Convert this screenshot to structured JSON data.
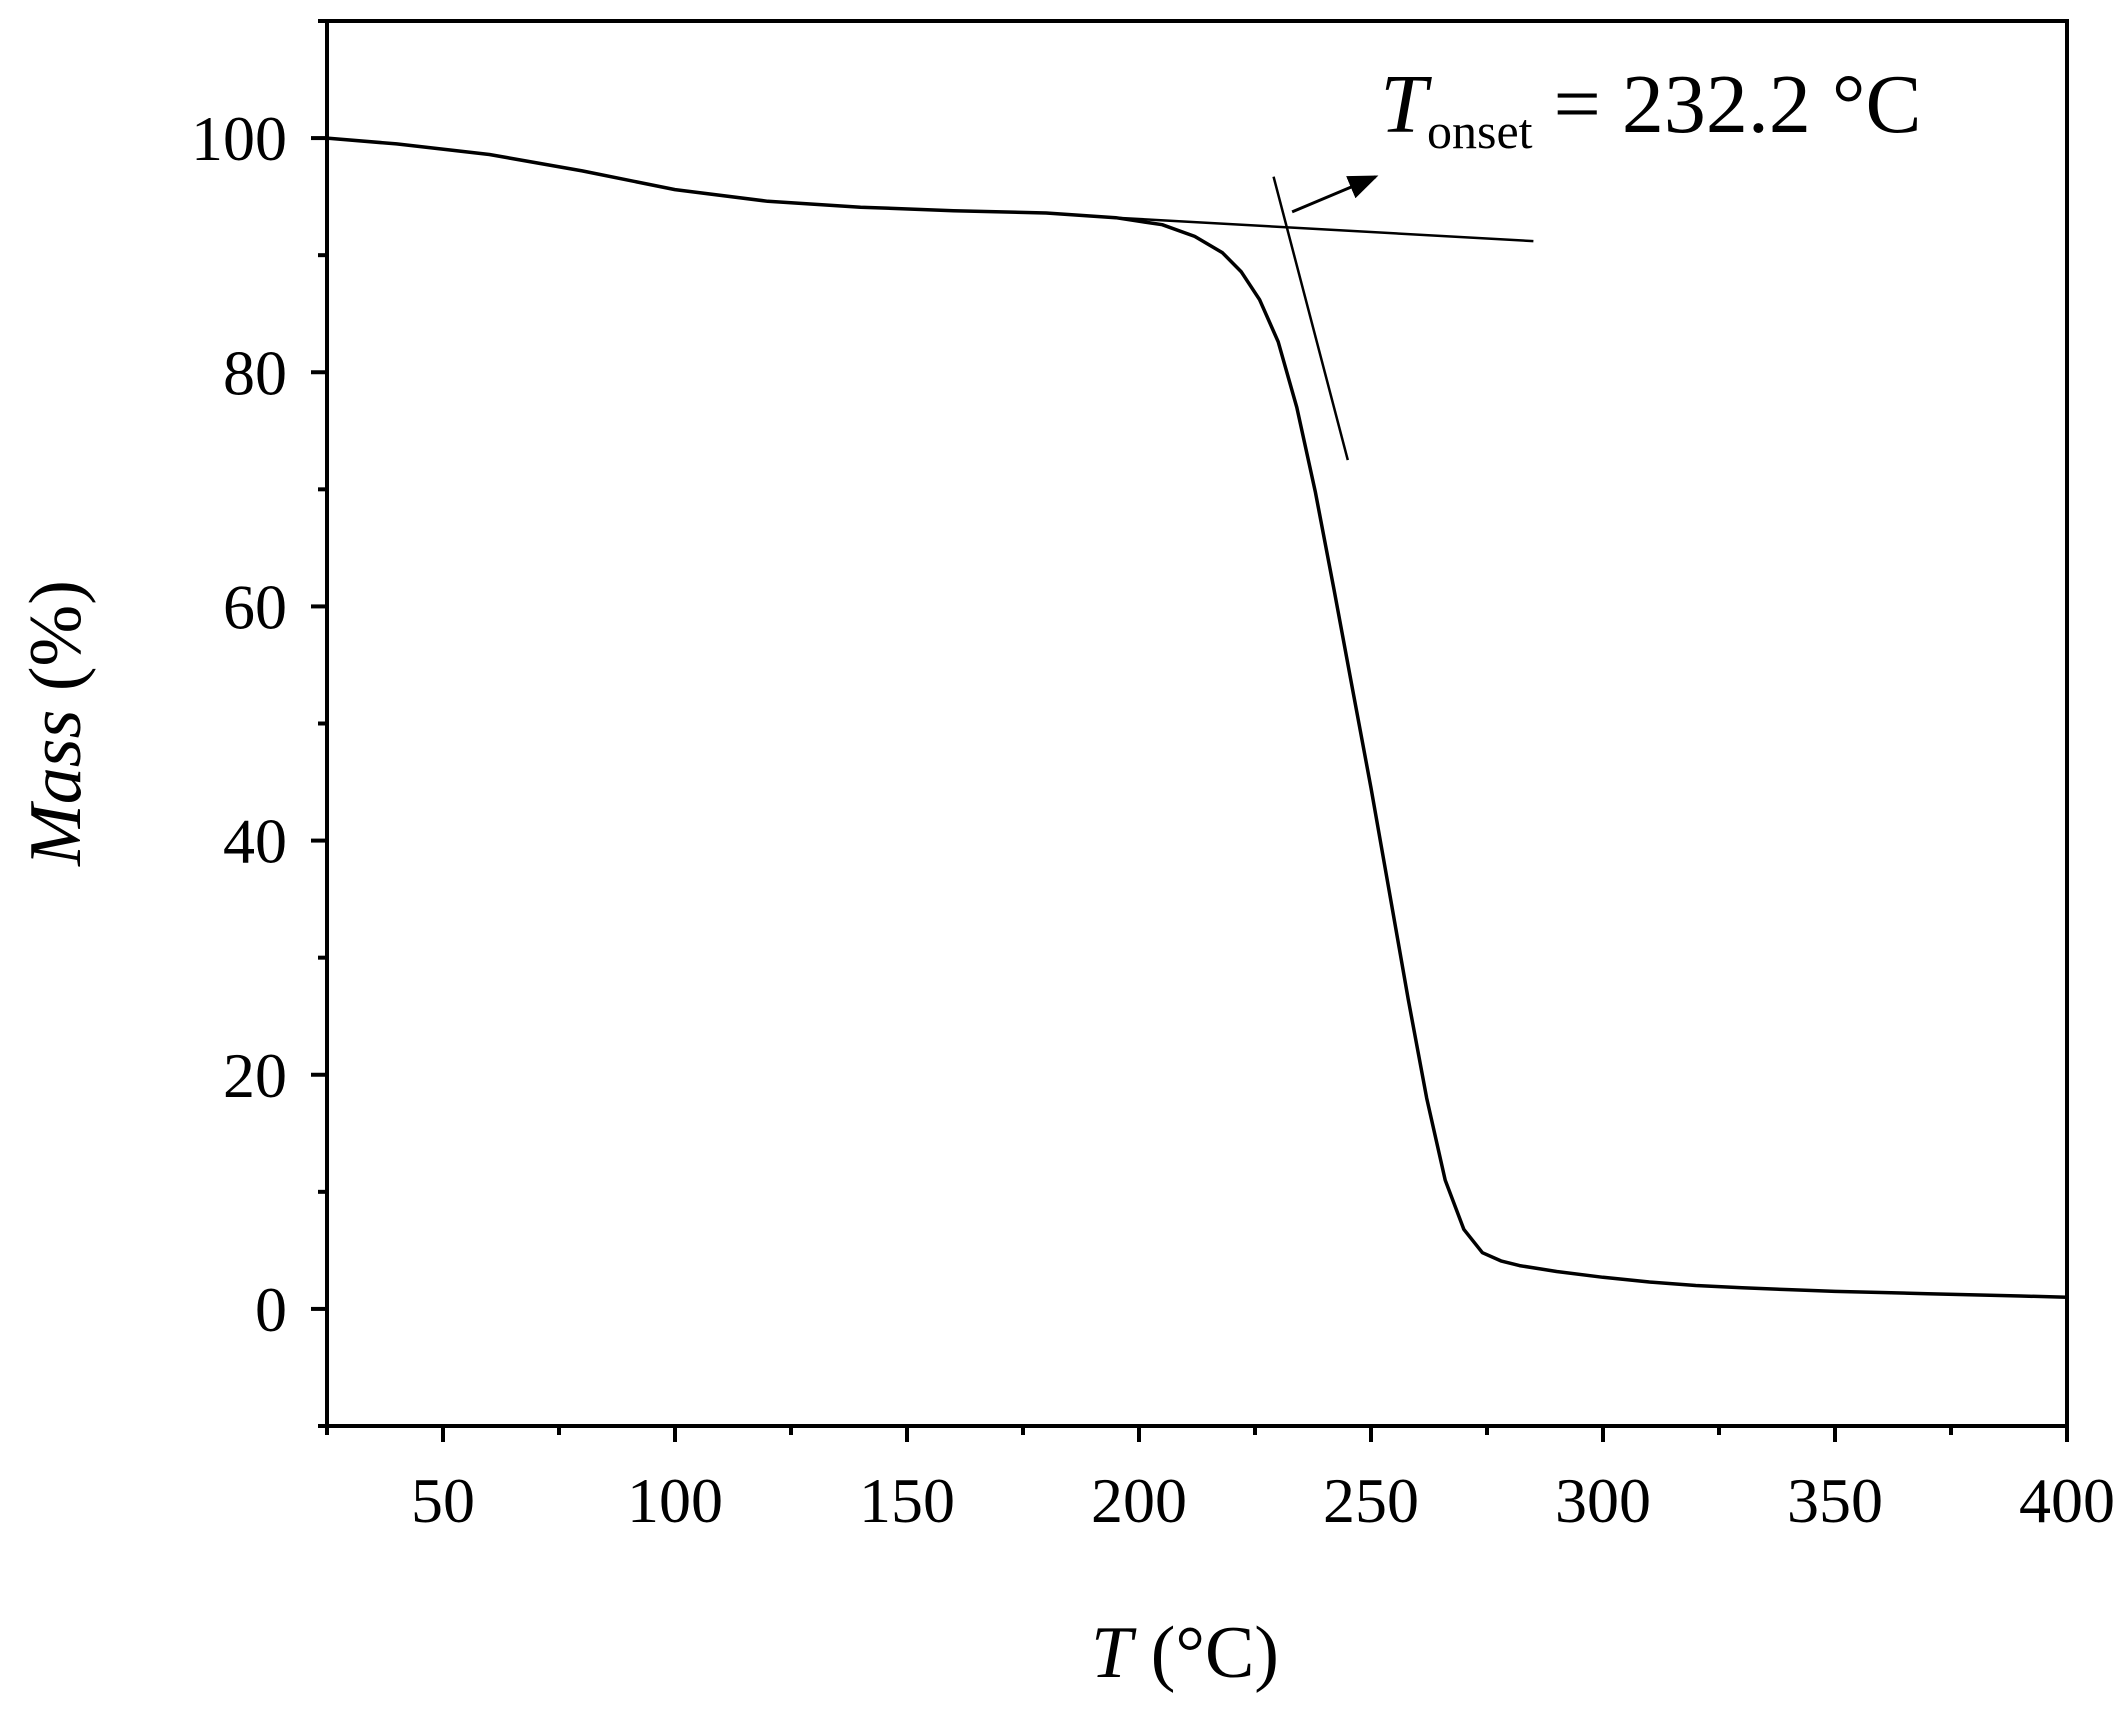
{
  "chart_data": {
    "type": "line",
    "xlabel": {
      "var": "T",
      "unit": " (°C)"
    },
    "ylabel": {
      "var": "Mass",
      "unit": " (%)"
    },
    "xlim": [
      25,
      400
    ],
    "ylim": [
      -10,
      110
    ],
    "x_ticks": [
      50,
      100,
      150,
      200,
      250,
      300,
      350,
      400
    ],
    "y_ticks": [
      0,
      20,
      40,
      60,
      80,
      100
    ],
    "grid": false,
    "legend": "none",
    "colors": {
      "line": "#000000",
      "axes": "#000000"
    },
    "series": [
      {
        "x": [
          25,
          40,
          60,
          80,
          100,
          120,
          140,
          160,
          180,
          195,
          205,
          212,
          218,
          222,
          226,
          230,
          234,
          238,
          242,
          246,
          250,
          254,
          258,
          262,
          266,
          270,
          274,
          278,
          282,
          290,
          300,
          310,
          320,
          330,
          340,
          350,
          360,
          370,
          380,
          390,
          400
        ],
        "y": [
          100,
          99.5,
          98.6,
          97.2,
          95.6,
          94.6,
          94.1,
          93.8,
          93.6,
          93.2,
          92.6,
          91.6,
          90.2,
          88.6,
          86.2,
          82.6,
          77.0,
          69.8,
          61.5,
          53.0,
          44.5,
          35.5,
          26.5,
          18.0,
          11.0,
          6.8,
          4.8,
          4.1,
          3.7,
          3.2,
          2.7,
          2.3,
          2.0,
          1.8,
          1.65,
          1.5,
          1.4,
          1.3,
          1.2,
          1.1,
          1.0
        ]
      }
    ],
    "tangent_lines": [
      {
        "x": [
          195,
          285
        ],
        "y": [
          93.2,
          91.2
        ]
      },
      {
        "x": [
          229,
          245
        ],
        "y": [
          96.7,
          72.5
        ]
      }
    ],
    "annotation": {
      "label_var": "T",
      "label_sub": "onset",
      "label_rest": " = 232.2 °C",
      "arrow_from": [
        233,
        93.7
      ],
      "arrow_to": [
        251,
        96.7
      ],
      "text_at": [
        252,
        100.5
      ]
    }
  }
}
